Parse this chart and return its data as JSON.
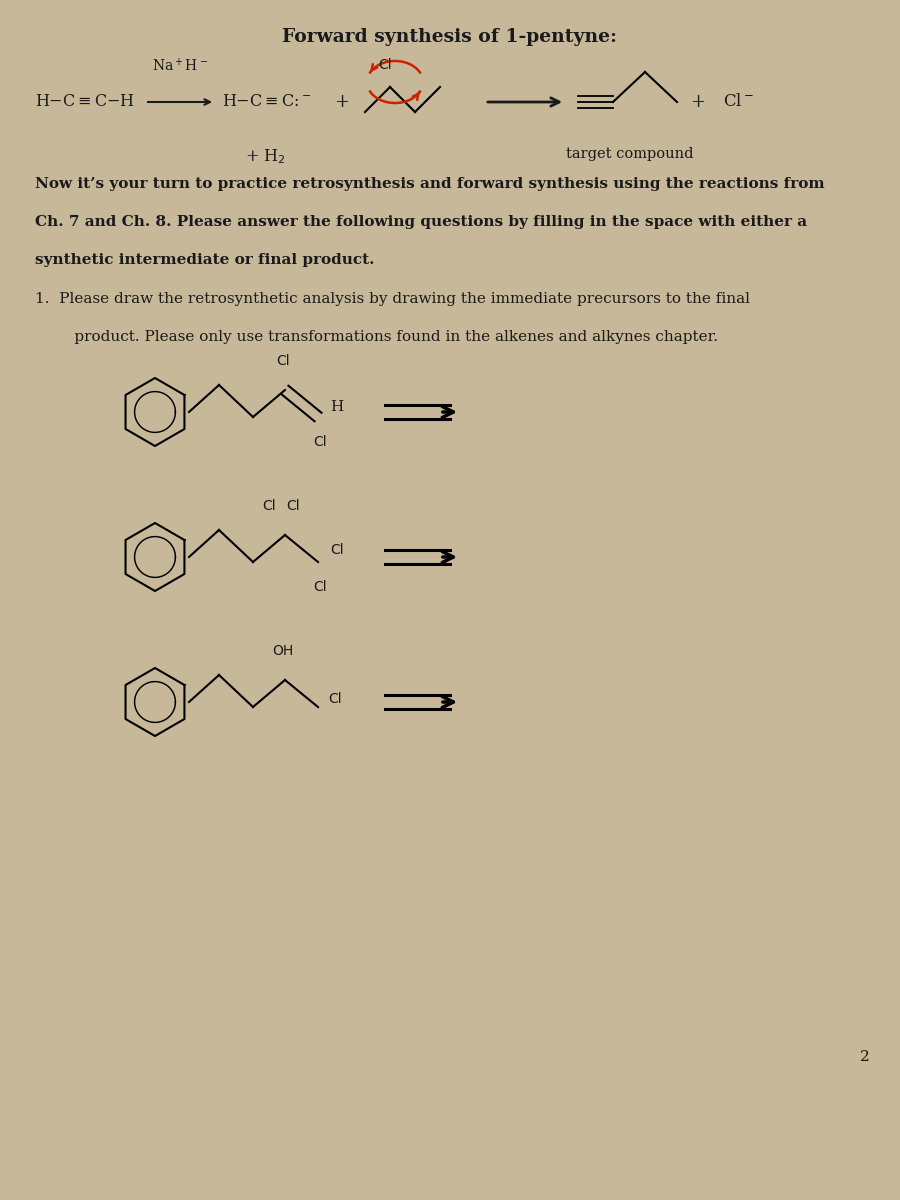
{
  "bg_color": "#c8b89a",
  "page_color": "#f2ede6",
  "title": "Forward synthesis of 1-pentyne:",
  "text_color": "#1a1a1a",
  "red_bar_color": "#8b2535",
  "page_number": "2",
  "body_text_bold": "Now it’s your turn to practice retrosynthesis and forward synthesis using the reactions from\nCh. 7 and Ch. 8. Please answer the following questions by filling in the space with either a\nsynthetic intermediate or final product.",
  "q1_line1": "1.  Please draw the retrosynthetic analysis by drawing the immediate precursors to the final",
  "q1_line2": "     product. Please only use transformations found in the alkenes and alkynes chapter."
}
